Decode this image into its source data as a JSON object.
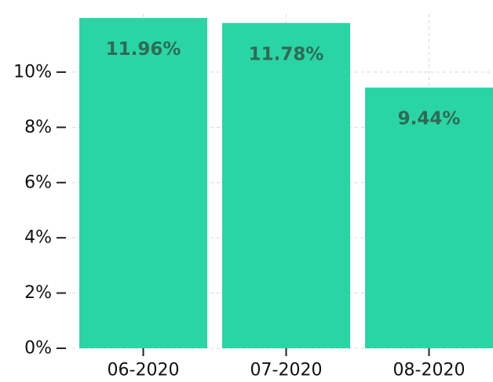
{
  "chart_data": {
    "type": "bar",
    "categories": [
      "06-2020",
      "07-2020",
      "08-2020"
    ],
    "values": [
      11.96,
      11.78,
      9.44
    ],
    "data_labels": [
      "11.96%",
      "11.78%",
      "9.44%"
    ],
    "yticks": [
      {
        "value": 0,
        "label": "0%"
      },
      {
        "value": 2,
        "label": "2%"
      },
      {
        "value": 4,
        "label": "4%"
      },
      {
        "value": 6,
        "label": "6%"
      },
      {
        "value": 8,
        "label": "8%"
      },
      {
        "value": 10,
        "label": "10%"
      }
    ],
    "ylim": [
      0,
      12.1
    ],
    "grid": true,
    "bar_color": "#2ad5a5",
    "label_color": "#2f6a55"
  }
}
